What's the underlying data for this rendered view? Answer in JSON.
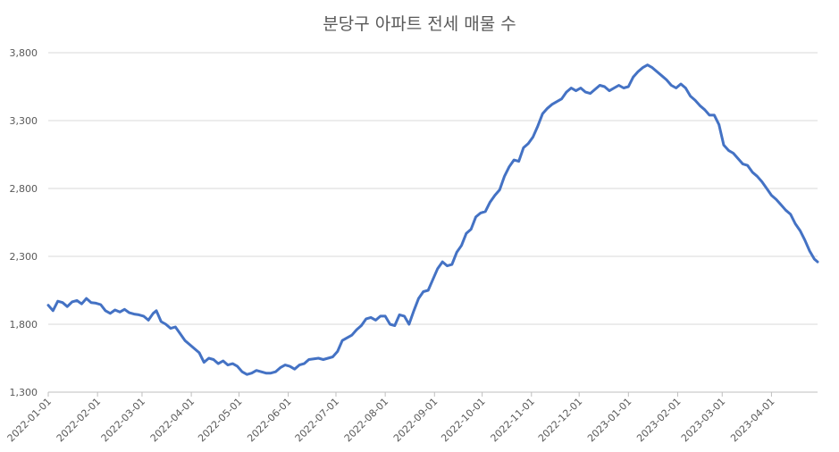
{
  "chart_data": {
    "type": "line",
    "title": "분당구 아파트 전세 매물 수",
    "xlabel": "",
    "ylabel": "",
    "ylim": [
      1300,
      3800
    ],
    "y_ticks": [
      1300,
      1800,
      2300,
      2800,
      3300,
      3800
    ],
    "y_tick_labels": [
      "1,300",
      "1,800",
      "2,300",
      "2,800",
      "3,300",
      "3,800"
    ],
    "x_ticks": [
      "2022-01-01",
      "2022-02-01",
      "2022-03-01",
      "2022-04-01",
      "2022-05-01",
      "2022-06-01",
      "2022-07-01",
      "2022-08-01",
      "2022-09-01",
      "2022-10-01",
      "2022-11-01",
      "2022-12-01",
      "2023-01-01",
      "2023-02-01",
      "2023-03-01",
      "2023-04-01"
    ],
    "xlim": [
      "2022-01-01",
      "2023-04-30"
    ],
    "grid": true,
    "legend": "none",
    "line_color": "#4472c4",
    "series": [
      {
        "points": [
          [
            "2022-01-01",
            1940
          ],
          [
            "2022-01-04",
            1900
          ],
          [
            "2022-01-07",
            1970
          ],
          [
            "2022-01-10",
            1960
          ],
          [
            "2022-01-13",
            1930
          ],
          [
            "2022-01-16",
            1965
          ],
          [
            "2022-01-19",
            1975
          ],
          [
            "2022-01-22",
            1950
          ],
          [
            "2022-01-25",
            1990
          ],
          [
            "2022-01-28",
            1960
          ],
          [
            "2022-01-31",
            1955
          ],
          [
            "2022-02-03",
            1945
          ],
          [
            "2022-02-06",
            1900
          ],
          [
            "2022-02-09",
            1880
          ],
          [
            "2022-02-12",
            1905
          ],
          [
            "2022-02-15",
            1890
          ],
          [
            "2022-02-18",
            1910
          ],
          [
            "2022-02-21",
            1885
          ],
          [
            "2022-02-24",
            1875
          ],
          [
            "2022-02-27",
            1870
          ],
          [
            "2022-03-02",
            1860
          ],
          [
            "2022-03-05",
            1830
          ],
          [
            "2022-03-08",
            1880
          ],
          [
            "2022-03-10",
            1900
          ],
          [
            "2022-03-13",
            1820
          ],
          [
            "2022-03-16",
            1800
          ],
          [
            "2022-03-19",
            1770
          ],
          [
            "2022-03-22",
            1780
          ],
          [
            "2022-03-25",
            1730
          ],
          [
            "2022-03-28",
            1680
          ],
          [
            "2022-03-31",
            1650
          ],
          [
            "2022-04-03",
            1620
          ],
          [
            "2022-04-06",
            1590
          ],
          [
            "2022-04-09",
            1520
          ],
          [
            "2022-04-12",
            1550
          ],
          [
            "2022-04-15",
            1540
          ],
          [
            "2022-04-18",
            1510
          ],
          [
            "2022-04-21",
            1530
          ],
          [
            "2022-04-24",
            1500
          ],
          [
            "2022-04-27",
            1510
          ],
          [
            "2022-04-30",
            1490
          ],
          [
            "2022-05-03",
            1450
          ],
          [
            "2022-05-06",
            1430
          ],
          [
            "2022-05-09",
            1440
          ],
          [
            "2022-05-12",
            1460
          ],
          [
            "2022-05-15",
            1450
          ],
          [
            "2022-05-18",
            1440
          ],
          [
            "2022-05-21",
            1440
          ],
          [
            "2022-05-24",
            1450
          ],
          [
            "2022-05-27",
            1480
          ],
          [
            "2022-05-30",
            1500
          ],
          [
            "2022-06-02",
            1490
          ],
          [
            "2022-06-05",
            1470
          ],
          [
            "2022-06-08",
            1500
          ],
          [
            "2022-06-11",
            1510
          ],
          [
            "2022-06-14",
            1540
          ],
          [
            "2022-06-17",
            1545
          ],
          [
            "2022-06-20",
            1550
          ],
          [
            "2022-06-23",
            1540
          ],
          [
            "2022-06-26",
            1550
          ],
          [
            "2022-06-29",
            1560
          ],
          [
            "2022-07-02",
            1600
          ],
          [
            "2022-07-05",
            1680
          ],
          [
            "2022-07-08",
            1700
          ],
          [
            "2022-07-11",
            1720
          ],
          [
            "2022-07-14",
            1760
          ],
          [
            "2022-07-17",
            1790
          ],
          [
            "2022-07-20",
            1840
          ],
          [
            "2022-07-23",
            1850
          ],
          [
            "2022-07-26",
            1830
          ],
          [
            "2022-07-29",
            1860
          ],
          [
            "2022-08-01",
            1860
          ],
          [
            "2022-08-04",
            1800
          ],
          [
            "2022-08-07",
            1790
          ],
          [
            "2022-08-10",
            1870
          ],
          [
            "2022-08-13",
            1860
          ],
          [
            "2022-08-16",
            1800
          ],
          [
            "2022-08-19",
            1900
          ],
          [
            "2022-08-22",
            1990
          ],
          [
            "2022-08-25",
            2040
          ],
          [
            "2022-08-28",
            2050
          ],
          [
            "2022-08-31",
            2130
          ],
          [
            "2022-09-03",
            2210
          ],
          [
            "2022-09-06",
            2260
          ],
          [
            "2022-09-09",
            2230
          ],
          [
            "2022-09-12",
            2240
          ],
          [
            "2022-09-15",
            2330
          ],
          [
            "2022-09-18",
            2380
          ],
          [
            "2022-09-21",
            2470
          ],
          [
            "2022-09-24",
            2500
          ],
          [
            "2022-09-27",
            2590
          ],
          [
            "2022-09-30",
            2620
          ],
          [
            "2022-10-03",
            2630
          ],
          [
            "2022-10-06",
            2700
          ],
          [
            "2022-10-09",
            2750
          ],
          [
            "2022-10-12",
            2790
          ],
          [
            "2022-10-15",
            2890
          ],
          [
            "2022-10-18",
            2960
          ],
          [
            "2022-10-21",
            3010
          ],
          [
            "2022-10-24",
            3000
          ],
          [
            "2022-10-27",
            3100
          ],
          [
            "2022-10-30",
            3130
          ],
          [
            "2022-11-02",
            3180
          ],
          [
            "2022-11-05",
            3260
          ],
          [
            "2022-11-08",
            3350
          ],
          [
            "2022-11-11",
            3390
          ],
          [
            "2022-11-14",
            3420
          ],
          [
            "2022-11-17",
            3440
          ],
          [
            "2022-11-20",
            3460
          ],
          [
            "2022-11-23",
            3510
          ],
          [
            "2022-11-26",
            3540
          ],
          [
            "2022-11-29",
            3520
          ],
          [
            "2022-12-02",
            3540
          ],
          [
            "2022-12-05",
            3510
          ],
          [
            "2022-12-08",
            3500
          ],
          [
            "2022-12-11",
            3530
          ],
          [
            "2022-12-14",
            3560
          ],
          [
            "2022-12-17",
            3550
          ],
          [
            "2022-12-20",
            3520
          ],
          [
            "2022-12-23",
            3540
          ],
          [
            "2022-12-26",
            3560
          ],
          [
            "2022-12-29",
            3540
          ],
          [
            "2023-01-01",
            3550
          ],
          [
            "2023-01-04",
            3620
          ],
          [
            "2023-01-07",
            3660
          ],
          [
            "2023-01-10",
            3690
          ],
          [
            "2023-01-13",
            3710
          ],
          [
            "2023-01-16",
            3690
          ],
          [
            "2023-01-19",
            3660
          ],
          [
            "2023-01-22",
            3630
          ],
          [
            "2023-01-25",
            3600
          ],
          [
            "2023-01-28",
            3560
          ],
          [
            "2023-01-31",
            3540
          ],
          [
            "2023-02-03",
            3570
          ],
          [
            "2023-02-06",
            3540
          ],
          [
            "2023-02-09",
            3480
          ],
          [
            "2023-02-12",
            3450
          ],
          [
            "2023-02-15",
            3410
          ],
          [
            "2023-02-18",
            3380
          ],
          [
            "2023-02-21",
            3340
          ],
          [
            "2023-02-24",
            3340
          ],
          [
            "2023-02-27",
            3270
          ],
          [
            "2023-03-02",
            3120
          ],
          [
            "2023-03-05",
            3080
          ],
          [
            "2023-03-08",
            3060
          ],
          [
            "2023-03-11",
            3020
          ],
          [
            "2023-03-14",
            2980
          ],
          [
            "2023-03-17",
            2970
          ],
          [
            "2023-03-20",
            2920
          ],
          [
            "2023-03-23",
            2890
          ],
          [
            "2023-03-26",
            2850
          ],
          [
            "2023-03-29",
            2800
          ],
          [
            "2023-04-01",
            2750
          ],
          [
            "2023-04-04",
            2720
          ],
          [
            "2023-04-07",
            2680
          ],
          [
            "2023-04-10",
            2640
          ],
          [
            "2023-04-13",
            2610
          ],
          [
            "2023-04-16",
            2540
          ],
          [
            "2023-04-19",
            2490
          ],
          [
            "2023-04-22",
            2420
          ],
          [
            "2023-04-25",
            2340
          ],
          [
            "2023-04-28",
            2280
          ],
          [
            "2023-04-30",
            2260
          ]
        ]
      }
    ]
  }
}
